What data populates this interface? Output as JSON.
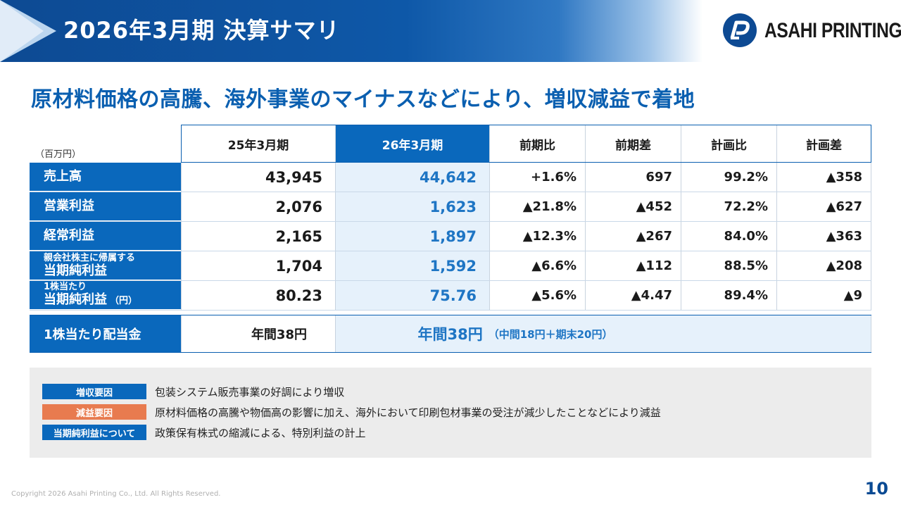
{
  "header": {
    "title": "2026年3月期 決算サマリ",
    "logo_text": "ASAHI PRINTING"
  },
  "headline": "原材料価格の高騰、海外事業のマイナスなどにより、増収減益で着地",
  "table": {
    "unit": "（百万円）",
    "columns": [
      "25年3月期",
      "26年3月期",
      "前期比",
      "前期差",
      "計画比",
      "計画差"
    ],
    "rows": [
      {
        "label_small": "",
        "label": "売上高",
        "label_unit": "",
        "values": [
          "43,945",
          "44,642",
          "+1.6%",
          "697",
          "99.2%",
          "▲358"
        ]
      },
      {
        "label_small": "",
        "label": "営業利益",
        "label_unit": "",
        "values": [
          "2,076",
          "1,623",
          "▲21.8%",
          "▲452",
          "72.2%",
          "▲627"
        ]
      },
      {
        "label_small": "",
        "label": "経常利益",
        "label_unit": "",
        "values": [
          "2,165",
          "1,897",
          "▲12.3%",
          "▲267",
          "84.0%",
          "▲363"
        ]
      },
      {
        "label_small": "親会社株主に帰属する",
        "label": "当期純利益",
        "label_unit": "",
        "values": [
          "1,704",
          "1,592",
          "▲6.6%",
          "▲112",
          "88.5%",
          "▲208"
        ]
      },
      {
        "label_small": "1株当たり",
        "label": "当期純利益",
        "label_unit": "（円）",
        "values": [
          "80.23",
          "75.76",
          "▲5.6%",
          "▲4.47",
          "89.4%",
          "▲9"
        ]
      }
    ],
    "dividend": {
      "label": "1株当たり配当金",
      "prev": "年間38円",
      "cur_main": "年間38円",
      "cur_sub": "（中間18円＋期末20円）"
    }
  },
  "factors": [
    {
      "tag": "増収要因",
      "color": "#0a68bc",
      "text": "包装システム販売事業の好調により増収"
    },
    {
      "tag": "減益要因",
      "color": "#e87b4f",
      "text": "原材料価格の高騰や物価高の影響に加え、海外において印刷包材事業の受注が減少したことなどにより減益"
    },
    {
      "tag": "当期純利益について",
      "color": "#0a68bc",
      "text": "政策保有株式の縮減による、特別利益の計上"
    }
  ],
  "footer": {
    "copyright": "Copyright 2026 Asahi Printing Co., Ltd. All Rights Reserved.",
    "page": "10"
  }
}
